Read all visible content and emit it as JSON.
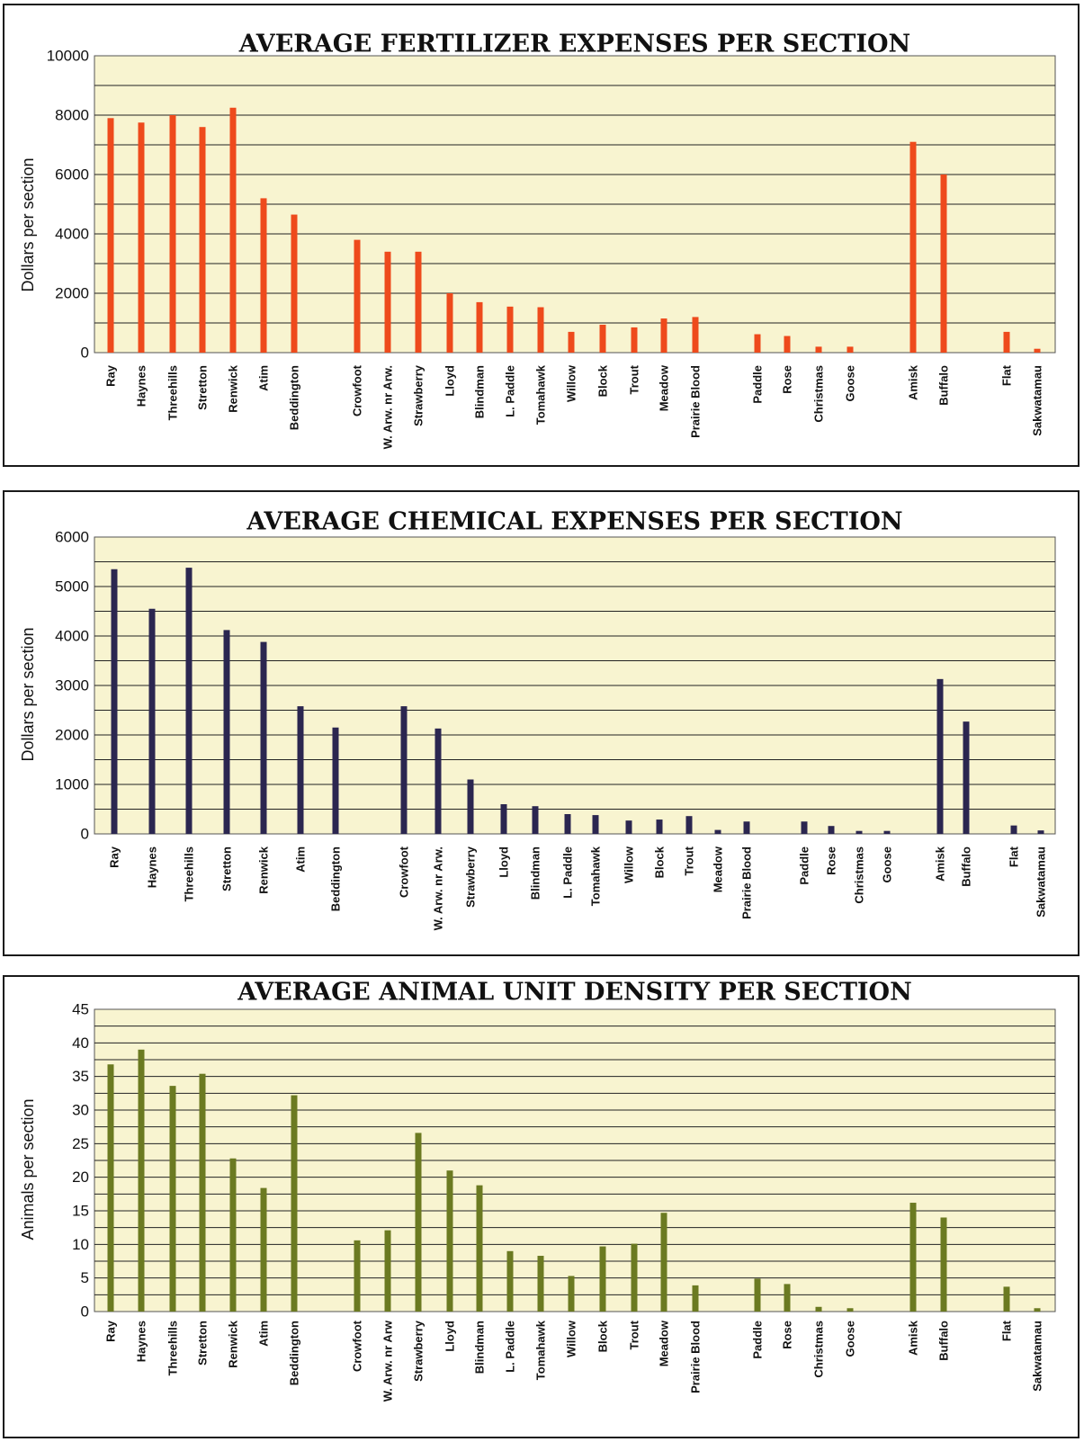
{
  "chart_data": [
    {
      "type": "bar",
      "title": "AVERAGE FERTILIZER EXPENSES PER SECTION",
      "ylabel": "Dollars per section",
      "ylim": [
        0,
        10000
      ],
      "yticks": [
        0,
        2000,
        4000,
        6000,
        8000,
        10000
      ],
      "grid": true,
      "bar_color": "#ee4a1c",
      "categories": [
        "Ray",
        "Haynes",
        "Threehills",
        "Stretton",
        "Renwick",
        "Atim",
        "Beddington",
        "Crowfoot",
        "W. Arw. nr Arw.",
        "Strawberry",
        "Lloyd",
        "Blindman",
        "L. Paddle",
        "Tomahawk",
        "Willow",
        "Block",
        "Trout",
        "Meadow",
        "Prairie Blood",
        "Paddle",
        "Rose",
        "Christmas",
        "Goose",
        "Amisk",
        "Buffalo",
        "Flat",
        "Sakwatamau"
      ],
      "values": [
        7900,
        7750,
        8000,
        7600,
        8250,
        5200,
        4650,
        3800,
        3400,
        3400,
        2000,
        1700,
        1550,
        1530,
        700,
        940,
        850,
        1150,
        1200,
        620,
        560,
        200,
        200,
        7100,
        6000,
        700,
        130
      ]
    },
    {
      "type": "bar",
      "title": "AVERAGE CHEMICAL EXPENSES PER SECTION",
      "ylabel": "Dollars per section",
      "ylim": [
        0,
        6000
      ],
      "yticks": [
        0,
        1000,
        2000,
        3000,
        4000,
        5000,
        6000
      ],
      "grid": true,
      "bar_color": "#2b2650",
      "categories": [
        "Ray",
        "Haynes",
        "Threehills",
        "Stretton",
        "Renwick",
        "Atim",
        "Beddington",
        "Crowfoot",
        "W. Arw. nr Arw.",
        "Strawberry",
        "Lloyd",
        "Blindman",
        "L. Paddle",
        "Tomahawk",
        "Willow",
        "Block",
        "Trout",
        "Meadow",
        "Prairie Blood",
        "Paddle",
        "Rose",
        "Christmas",
        "Goose",
        "Amisk",
        "Buffalo",
        "Flat",
        "Sakwatamau"
      ],
      "values": [
        5350,
        4550,
        5380,
        4120,
        3880,
        2580,
        2150,
        2580,
        2130,
        1100,
        600,
        560,
        400,
        380,
        270,
        290,
        360,
        80,
        250,
        250,
        160,
        60,
        60,
        3130,
        2270,
        170,
        70
      ]
    },
    {
      "type": "bar",
      "title": "AVERAGE ANIMAL UNIT DENSITY PER SECTION",
      "ylabel": "Animals per section",
      "ylim": [
        0,
        45
      ],
      "yticks": [
        0,
        5,
        10,
        15,
        20,
        25,
        30,
        35,
        40,
        45
      ],
      "grid": true,
      "bar_color": "#6b7a21",
      "categories": [
        "Ray",
        "Haynes",
        "Threehills",
        "Stretton",
        "Renwick",
        "Atim",
        "Beddington",
        "Crowfoot",
        "W. Arw. nr Arw",
        "Strawberry",
        "Lloyd",
        "Blindman",
        "L. Paddle",
        "Tomahawk",
        "Willow",
        "Block",
        "Trout",
        "Meadow",
        "Prairie Blood",
        "Paddle",
        "Rose",
        "Christmas",
        "Goose",
        "Amisk",
        "Buffalo",
        "Flat",
        "Sakwatamau"
      ],
      "values": [
        36.8,
        39,
        33.6,
        35.4,
        22.8,
        18.4,
        32.2,
        10.6,
        12.1,
        26.6,
        21,
        18.8,
        9,
        8.3,
        5.3,
        9.7,
        10.1,
        14.7,
        3.9,
        4.9,
        4.1,
        0.7,
        0.5,
        16.2,
        14,
        3.7,
        0.5
      ]
    }
  ]
}
